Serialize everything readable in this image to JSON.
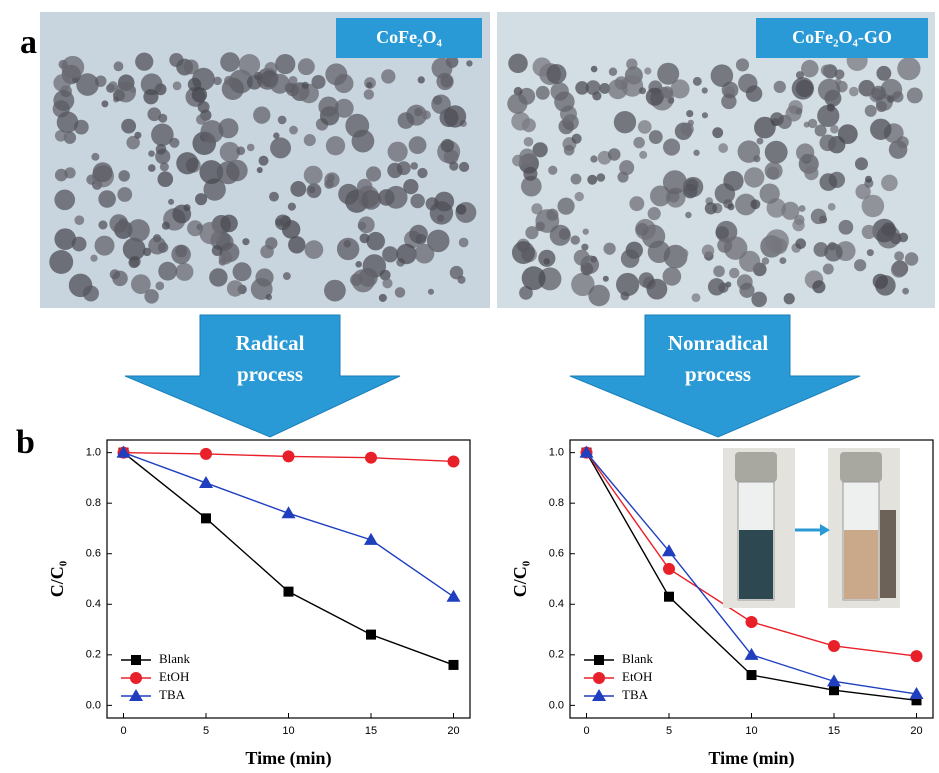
{
  "figure": {
    "panel_labels": [
      "a",
      "b"
    ],
    "image_labels": [
      "CoFe₂O₄",
      "CoFe₂O₄-GO"
    ],
    "arrows": [
      [
        "Radical",
        "process"
      ],
      [
        "Nonradical",
        "process"
      ]
    ]
  },
  "chart_data": [
    {
      "type": "line",
      "x_label": "Time (min)",
      "y_label": "C/C₀",
      "x": [
        0,
        5,
        10,
        15,
        20
      ],
      "xlim": [
        -1,
        21
      ],
      "xticks": [
        0,
        5,
        10,
        15,
        20
      ],
      "ylim": [
        -0.05,
        1.05
      ],
      "yticks": [
        {
          "value": 0,
          "label": "0.0"
        },
        {
          "value": 0.2,
          "label": "0.2"
        },
        {
          "value": 0.4,
          "label": "0.4"
        },
        {
          "value": 0.6,
          "label": "0.6"
        },
        {
          "value": 0.8,
          "label": "0.8"
        },
        {
          "value": 1,
          "label": "1.0"
        }
      ],
      "legend": "lower left",
      "series": [
        {
          "name": "Blank",
          "color": "#000000",
          "marker": "square",
          "values": [
            1.0,
            0.74,
            0.45,
            0.28,
            0.16
          ]
        },
        {
          "name": "EtOH",
          "color": "#e8202a",
          "marker": "circle",
          "values": [
            1.0,
            0.995,
            0.985,
            0.98,
            0.965
          ]
        },
        {
          "name": "TBA",
          "color": "#1f3fbf",
          "marker": "triangle",
          "values": [
            1.0,
            0.88,
            0.76,
            0.655,
            0.43
          ]
        }
      ]
    },
    {
      "type": "line",
      "x_label": "Time (min)",
      "y_label": "C/C₀",
      "x": [
        0,
        5,
        10,
        15,
        20
      ],
      "xlim": [
        -1,
        21
      ],
      "xticks": [
        0,
        5,
        10,
        15,
        20
      ],
      "ylim": [
        -0.05,
        1.05
      ],
      "yticks": [
        {
          "value": 0,
          "label": "0.0"
        },
        {
          "value": 0.2,
          "label": "0.2"
        },
        {
          "value": 0.4,
          "label": "0.4"
        },
        {
          "value": 0.6,
          "label": "0.6"
        },
        {
          "value": 0.8,
          "label": "0.8"
        },
        {
          "value": 1,
          "label": "1.0"
        }
      ],
      "legend": "lower left",
      "series": [
        {
          "name": "Blank",
          "color": "#000000",
          "marker": "square",
          "values": [
            1.0,
            0.43,
            0.12,
            0.06,
            0.02
          ]
        },
        {
          "name": "EtOH",
          "color": "#e8202a",
          "marker": "circle",
          "values": [
            1.0,
            0.54,
            0.33,
            0.235,
            0.195
          ]
        },
        {
          "name": "TBA",
          "color": "#1f3fbf",
          "marker": "triangle",
          "values": [
            1.0,
            0.61,
            0.2,
            0.095,
            0.045
          ]
        }
      ]
    }
  ]
}
